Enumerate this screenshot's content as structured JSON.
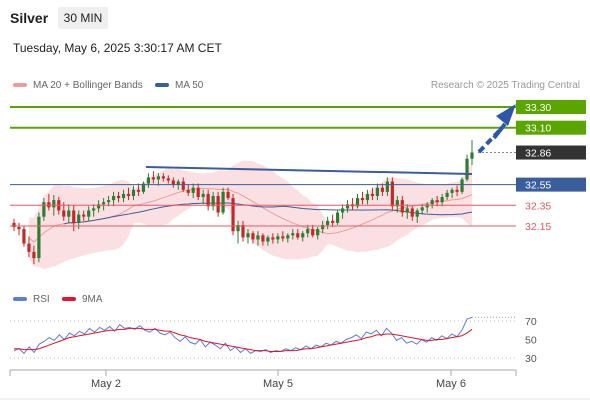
{
  "header": {
    "symbol": "Silver",
    "timeframe": "30 MIN",
    "datetime": "Tuesday, May 6, 2025 3:30:17 AM CET"
  },
  "legend": {
    "ma20_label": "MA 20 + Bollinger Bands",
    "ma50_label": "MA 50",
    "credit": "Research © 2025 Trading Central"
  },
  "rsi_legend": {
    "rsi_label": "RSI",
    "ma_label": "9MA"
  },
  "colors": {
    "up": "#2e7d32",
    "down": "#c62828",
    "green_level": "#5aa500",
    "red_level": "#e65a64",
    "blue_level": "#3a5d9c",
    "current": "#333333",
    "arrow": "#2f57a8",
    "bollinger": "#fbdde0",
    "ma20": "#f39a9a",
    "ma50": "#3b5e9b",
    "rsi": "#5b7fd3",
    "rsi_ma": "#e5142b"
  },
  "chart_data": {
    "type": "candlestick",
    "x_tick_labels": [
      "May 2",
      "May 5",
      "May 6"
    ],
    "price_levels": [
      {
        "value": "33.30",
        "kind": "resistance"
      },
      {
        "value": "33.10",
        "kind": "resistance"
      },
      {
        "value": "32.86",
        "kind": "current"
      },
      {
        "value": "32.55",
        "kind": "pivot"
      },
      {
        "value": "32.35",
        "kind": "support"
      },
      {
        "value": "32.15",
        "kind": "support"
      }
    ],
    "rsi_ticks": [
      "70",
      "50",
      "30"
    ],
    "ohlc": [
      [
        32.18,
        32.22,
        32.1,
        32.14
      ],
      [
        32.14,
        32.18,
        32.06,
        32.12
      ],
      [
        32.12,
        32.15,
        31.95,
        31.98
      ],
      [
        31.98,
        32.05,
        31.85,
        31.9
      ],
      [
        31.9,
        31.96,
        31.78,
        31.84
      ],
      [
        31.84,
        32.28,
        31.8,
        32.24
      ],
      [
        32.24,
        32.42,
        32.2,
        32.38
      ],
      [
        32.38,
        32.46,
        32.3,
        32.33
      ],
      [
        32.33,
        32.45,
        32.25,
        32.4
      ],
      [
        32.4,
        32.43,
        32.26,
        32.3
      ],
      [
        32.3,
        32.38,
        32.2,
        32.24
      ],
      [
        32.24,
        32.36,
        32.18,
        32.3
      ],
      [
        32.3,
        32.35,
        32.1,
        32.18
      ],
      [
        32.18,
        32.3,
        32.12,
        32.26
      ],
      [
        32.26,
        32.3,
        32.2,
        32.24
      ],
      [
        32.24,
        32.34,
        32.2,
        32.3
      ],
      [
        32.3,
        32.36,
        32.24,
        32.32
      ],
      [
        32.32,
        32.4,
        32.28,
        32.36
      ],
      [
        32.36,
        32.42,
        32.3,
        32.38
      ],
      [
        32.38,
        32.44,
        32.34,
        32.4
      ],
      [
        32.4,
        32.48,
        32.34,
        32.44
      ],
      [
        32.44,
        32.48,
        32.38,
        32.42
      ],
      [
        32.42,
        32.5,
        32.38,
        32.46
      ],
      [
        32.46,
        32.52,
        32.4,
        32.44
      ],
      [
        32.44,
        32.54,
        32.4,
        32.5
      ],
      [
        32.5,
        32.56,
        32.44,
        32.48
      ],
      [
        32.48,
        32.58,
        32.46,
        32.56
      ],
      [
        32.56,
        32.66,
        32.52,
        32.62
      ],
      [
        32.62,
        32.68,
        32.56,
        32.6
      ],
      [
        32.6,
        32.66,
        32.54,
        32.63
      ],
      [
        32.63,
        32.66,
        32.58,
        32.61
      ],
      [
        32.61,
        32.64,
        32.56,
        32.59
      ],
      [
        32.59,
        32.62,
        32.52,
        32.55
      ],
      [
        32.55,
        32.6,
        32.5,
        32.58
      ],
      [
        32.58,
        32.62,
        32.48,
        32.5
      ],
      [
        32.5,
        32.55,
        32.44,
        32.47
      ],
      [
        32.47,
        32.56,
        32.42,
        32.52
      ],
      [
        32.52,
        32.56,
        32.4,
        32.43
      ],
      [
        32.43,
        32.5,
        32.36,
        32.46
      ],
      [
        32.46,
        32.5,
        32.3,
        32.34
      ],
      [
        32.34,
        32.48,
        32.3,
        32.44
      ],
      [
        32.44,
        32.48,
        32.24,
        32.28
      ],
      [
        32.28,
        32.52,
        32.26,
        32.48
      ],
      [
        32.48,
        32.52,
        32.4,
        32.42
      ],
      [
        32.42,
        32.46,
        32.06,
        32.1
      ],
      [
        32.1,
        32.2,
        31.98,
        32.16
      ],
      [
        32.16,
        32.2,
        32.0,
        32.04
      ],
      [
        32.04,
        32.12,
        31.98,
        32.08
      ],
      [
        32.08,
        32.1,
        31.98,
        32.02
      ],
      [
        32.02,
        32.1,
        31.96,
        32.06
      ],
      [
        32.06,
        32.08,
        31.96,
        32.0
      ],
      [
        32.0,
        32.06,
        31.96,
        32.04
      ],
      [
        32.04,
        32.08,
        31.98,
        32.02
      ],
      [
        32.02,
        32.08,
        31.98,
        32.05
      ],
      [
        32.05,
        32.1,
        32.0,
        32.03
      ],
      [
        32.03,
        32.08,
        31.99,
        32.06
      ],
      [
        32.06,
        32.12,
        32.02,
        32.08
      ],
      [
        32.08,
        32.12,
        32.02,
        32.04
      ],
      [
        32.04,
        32.1,
        32.0,
        32.08
      ],
      [
        32.08,
        32.16,
        32.04,
        32.12
      ],
      [
        32.12,
        32.16,
        32.04,
        32.06
      ],
      [
        32.06,
        32.14,
        32.02,
        32.12
      ],
      [
        32.12,
        32.2,
        32.08,
        32.16
      ],
      [
        32.16,
        32.24,
        32.12,
        32.2
      ],
      [
        32.2,
        32.26,
        32.14,
        32.18
      ],
      [
        32.18,
        32.3,
        32.16,
        32.28
      ],
      [
        32.28,
        32.36,
        32.22,
        32.32
      ],
      [
        32.32,
        32.4,
        32.28,
        32.36
      ],
      [
        32.36,
        32.42,
        32.3,
        32.34
      ],
      [
        32.34,
        32.46,
        32.32,
        32.42
      ],
      [
        32.42,
        32.48,
        32.36,
        32.4
      ],
      [
        32.4,
        32.5,
        32.36,
        32.46
      ],
      [
        32.46,
        32.52,
        32.4,
        32.44
      ],
      [
        32.44,
        32.56,
        32.4,
        32.52
      ],
      [
        32.52,
        32.56,
        32.44,
        32.48
      ],
      [
        32.48,
        32.62,
        32.44,
        32.58
      ],
      [
        32.58,
        32.62,
        32.3,
        32.34
      ],
      [
        32.34,
        32.44,
        32.28,
        32.4
      ],
      [
        32.4,
        32.44,
        32.24,
        32.28
      ],
      [
        32.28,
        32.36,
        32.22,
        32.32
      ],
      [
        32.32,
        32.34,
        32.2,
        32.24
      ],
      [
        32.24,
        32.32,
        32.18,
        32.3
      ],
      [
        32.3,
        32.36,
        32.26,
        32.33
      ],
      [
        32.33,
        32.38,
        32.28,
        32.36
      ],
      [
        32.36,
        32.42,
        32.32,
        32.4
      ],
      [
        32.4,
        32.44,
        32.34,
        32.38
      ],
      [
        32.38,
        32.46,
        32.34,
        32.43
      ],
      [
        32.43,
        32.5,
        32.4,
        32.47
      ],
      [
        32.47,
        32.52,
        32.42,
        32.5
      ],
      [
        32.5,
        32.54,
        32.44,
        32.48
      ],
      [
        32.48,
        32.62,
        32.46,
        32.6
      ],
      [
        32.6,
        32.84,
        32.58,
        32.8
      ],
      [
        32.8,
        32.98,
        32.74,
        32.86
      ]
    ],
    "rsi": [
      38,
      40,
      35,
      42,
      36,
      45,
      48,
      52,
      49,
      55,
      50,
      57,
      54,
      59,
      56,
      62,
      58,
      63,
      60,
      64,
      59,
      66,
      62,
      63,
      61,
      65,
      60,
      58,
      62,
      57,
      55,
      58,
      52,
      48,
      53,
      47,
      45,
      50,
      42,
      47,
      44,
      40,
      46,
      38,
      42,
      36,
      40,
      35,
      38,
      37,
      39,
      36,
      38,
      37,
      40,
      38,
      41,
      39,
      43,
      40,
      44,
      42,
      46,
      44,
      48,
      46,
      50,
      52,
      55,
      51,
      58,
      56,
      60,
      54,
      62,
      57,
      49,
      52,
      46,
      48,
      45,
      50,
      47,
      52,
      49,
      54,
      51,
      56,
      53,
      60,
      72,
      74
    ],
    "rsi_ma": [
      40,
      40,
      39,
      39,
      39,
      40,
      42,
      44,
      46,
      48,
      50,
      52,
      53,
      54,
      55,
      56,
      57,
      58,
      59,
      60,
      60,
      61,
      61,
      62,
      62,
      62,
      61,
      61,
      61,
      60,
      59,
      59,
      57,
      55,
      54,
      52,
      51,
      50,
      48,
      47,
      46,
      45,
      44,
      43,
      42,
      41,
      40,
      39,
      38,
      38,
      38,
      37,
      37,
      37,
      38,
      38,
      38,
      39,
      40,
      40,
      41,
      42,
      43,
      44,
      45,
      46,
      47,
      48,
      49,
      50,
      52,
      53,
      55,
      55,
      56,
      56,
      55,
      54,
      53,
      52,
      51,
      50,
      49,
      49,
      50,
      50,
      51,
      52,
      53,
      54,
      57,
      61
    ]
  }
}
